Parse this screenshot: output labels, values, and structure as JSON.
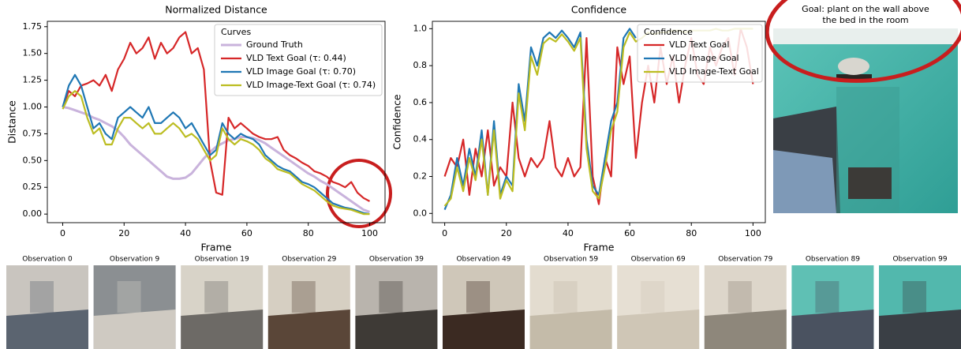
{
  "chart_data": [
    {
      "type": "line",
      "title": "Normalized Distance",
      "x_label": "Frame",
      "y_label": "Distance",
      "x": [
        0,
        2,
        4,
        6,
        8,
        10,
        12,
        14,
        16,
        18,
        20,
        22,
        24,
        26,
        28,
        30,
        32,
        34,
        36,
        38,
        40,
        42,
        44,
        46,
        48,
        50,
        52,
        54,
        56,
        58,
        60,
        62,
        64,
        66,
        68,
        70,
        72,
        74,
        76,
        78,
        80,
        82,
        84,
        86,
        88,
        90,
        92,
        94,
        96,
        98,
        100
      ],
      "xlim": [
        -5,
        105
      ],
      "xticks": [
        0,
        20,
        40,
        60,
        80,
        100
      ],
      "ylim": [
        -0.08,
        1.8
      ],
      "yticks": [
        {
          "value": 0,
          "label": "0.00"
        },
        {
          "value": 0.25,
          "label": "0.25"
        },
        {
          "value": 0.5,
          "label": "0.50"
        },
        {
          "value": 0.75,
          "label": "0.75"
        },
        {
          "value": 1,
          "label": "1.00"
        },
        {
          "value": 1.25,
          "label": "1.25"
        },
        {
          "value": 1.5,
          "label": "1.50"
        },
        {
          "value": 1.75,
          "label": "1.75"
        }
      ],
      "legend_title": "Curves",
      "legend": "upper right",
      "series": [
        {
          "name": "Ground Truth",
          "color": "#c9b3dc",
          "values": [
            1.0,
            0.99,
            0.97,
            0.95,
            0.93,
            0.9,
            0.88,
            0.85,
            0.82,
            0.78,
            0.72,
            0.65,
            0.6,
            0.55,
            0.5,
            0.45,
            0.4,
            0.35,
            0.33,
            0.33,
            0.34,
            0.38,
            0.45,
            0.52,
            0.58,
            0.63,
            0.66,
            0.69,
            0.7,
            0.72,
            0.72,
            0.71,
            0.69,
            0.66,
            0.62,
            0.58,
            0.54,
            0.5,
            0.46,
            0.42,
            0.38,
            0.35,
            0.31,
            0.28,
            0.24,
            0.2,
            0.16,
            0.12,
            0.08,
            0.04,
            0.02
          ]
        },
        {
          "name": "VLD Text Goal (τ: 0.44)",
          "color": "#d62728",
          "values": [
            1.0,
            1.15,
            1.1,
            1.2,
            1.22,
            1.25,
            1.2,
            1.3,
            1.15,
            1.35,
            1.45,
            1.6,
            1.5,
            1.55,
            1.65,
            1.45,
            1.6,
            1.5,
            1.55,
            1.65,
            1.7,
            1.5,
            1.55,
            1.35,
            0.5,
            0.2,
            0.18,
            0.9,
            0.8,
            0.85,
            0.8,
            0.75,
            0.72,
            0.7,
            0.7,
            0.72,
            0.6,
            0.55,
            0.52,
            0.48,
            0.45,
            0.4,
            0.38,
            0.35,
            0.3,
            0.28,
            0.25,
            0.3,
            0.2,
            0.15,
            0.12
          ]
        },
        {
          "name": "VLD Image Goal (τ: 0.70)",
          "color": "#1f77b4",
          "values": [
            1.0,
            1.2,
            1.3,
            1.2,
            1.0,
            0.8,
            0.85,
            0.75,
            0.7,
            0.9,
            0.95,
            1.0,
            0.95,
            0.9,
            1.0,
            0.85,
            0.85,
            0.9,
            0.95,
            0.9,
            0.8,
            0.85,
            0.75,
            0.65,
            0.55,
            0.6,
            0.85,
            0.75,
            0.7,
            0.75,
            0.72,
            0.7,
            0.65,
            0.55,
            0.5,
            0.45,
            0.42,
            0.4,
            0.35,
            0.3,
            0.28,
            0.25,
            0.2,
            0.15,
            0.1,
            0.08,
            0.06,
            0.05,
            0.03,
            0.01,
            0.0
          ]
        },
        {
          "name": "VLD Image-Text Goal (τ: 0.74)",
          "color": "#bcbd22",
          "values": [
            0.98,
            1.1,
            1.15,
            1.1,
            0.9,
            0.75,
            0.8,
            0.65,
            0.65,
            0.8,
            0.9,
            0.9,
            0.85,
            0.8,
            0.85,
            0.75,
            0.75,
            0.8,
            0.85,
            0.8,
            0.72,
            0.75,
            0.7,
            0.6,
            0.5,
            0.55,
            0.8,
            0.7,
            0.65,
            0.7,
            0.68,
            0.65,
            0.6,
            0.52,
            0.48,
            0.42,
            0.4,
            0.38,
            0.33,
            0.28,
            0.25,
            0.22,
            0.17,
            0.12,
            0.08,
            0.06,
            0.05,
            0.04,
            0.02,
            0.0,
            0.0
          ]
        }
      ]
    },
    {
      "type": "line",
      "title": "Confidence",
      "x_label": "Frame",
      "y_label": "Confidence",
      "x": [
        0,
        2,
        4,
        6,
        8,
        10,
        12,
        14,
        16,
        18,
        20,
        22,
        24,
        26,
        28,
        30,
        32,
        34,
        36,
        38,
        40,
        42,
        44,
        46,
        48,
        50,
        52,
        54,
        56,
        58,
        60,
        62,
        64,
        66,
        68,
        70,
        72,
        74,
        76,
        78,
        80,
        82,
        84,
        86,
        88,
        90,
        92,
        94,
        96,
        98,
        100
      ],
      "xlim": [
        -4,
        104
      ],
      "xticks": [
        0,
        20,
        40,
        60,
        80,
        100
      ],
      "ylim": [
        -0.05,
        1.04
      ],
      "yticks": [
        {
          "value": 0,
          "label": "0.0"
        },
        {
          "value": 0.2,
          "label": "0.2"
        },
        {
          "value": 0.4,
          "label": "0.4"
        },
        {
          "value": 0.6,
          "label": "0.6"
        },
        {
          "value": 0.8,
          "label": "0.8"
        },
        {
          "value": 1,
          "label": "1.0"
        }
      ],
      "legend_title": "Confidence",
      "legend": "upper right",
      "series": [
        {
          "name": "VLD Text Goal",
          "color": "#d62728",
          "values": [
            0.2,
            0.3,
            0.25,
            0.4,
            0.1,
            0.35,
            0.2,
            0.45,
            0.15,
            0.25,
            0.2,
            0.6,
            0.3,
            0.2,
            0.3,
            0.25,
            0.3,
            0.5,
            0.25,
            0.2,
            0.3,
            0.2,
            0.25,
            0.95,
            0.2,
            0.05,
            0.3,
            0.2,
            0.9,
            0.7,
            0.85,
            0.3,
            0.6,
            0.8,
            0.6,
            0.9,
            0.7,
            0.85,
            0.6,
            0.8,
            0.95,
            0.75,
            0.7,
            0.9,
            0.8,
            0.9,
            0.95,
            0.75,
            1.0,
            0.9,
            0.7
          ]
        },
        {
          "name": "VLD Image Goal",
          "color": "#1f77b4",
          "values": [
            0.02,
            0.1,
            0.3,
            0.15,
            0.35,
            0.2,
            0.45,
            0.1,
            0.5,
            0.1,
            0.2,
            0.15,
            0.7,
            0.5,
            0.9,
            0.8,
            0.95,
            0.98,
            0.95,
            0.99,
            0.95,
            0.9,
            0.98,
            0.4,
            0.15,
            0.1,
            0.3,
            0.5,
            0.6,
            0.95,
            1.0,
            0.95,
            null,
            null,
            null,
            null,
            null,
            null,
            null,
            null,
            null,
            null,
            null,
            null,
            null,
            null,
            null,
            null,
            null,
            null,
            null
          ]
        },
        {
          "name": "VLD Image-Text Goal",
          "color": "#bcbd22",
          "values": [
            0.04,
            0.08,
            0.25,
            0.12,
            0.3,
            0.18,
            0.4,
            0.1,
            0.45,
            0.08,
            0.18,
            0.12,
            0.65,
            0.45,
            0.85,
            0.75,
            0.92,
            0.95,
            0.93,
            0.97,
            0.93,
            0.88,
            0.95,
            0.35,
            0.12,
            0.08,
            0.25,
            0.45,
            0.55,
            0.9,
            0.98,
            0.93,
            0.95,
            0.98,
            0.97,
            0.98,
            0.98,
            0.99,
            0.99,
            0.98,
            0.99,
            0.99,
            0.99,
            0.99,
            1.0,
            0.99,
            0.99,
            1.0,
            1.0,
            1.0,
            1.0
          ]
        }
      ]
    }
  ],
  "goal_panel": {
    "lines": [
      "Goal: plant on the wall above",
      "the bed in the room"
    ]
  },
  "observations": [
    "Observation 0",
    "Observation 9",
    "Observation 19",
    "Observation 29",
    "Observation 39",
    "Observation 49",
    "Observation 59",
    "Observation 69",
    "Observation 79",
    "Observation 89",
    "Observation 99"
  ]
}
